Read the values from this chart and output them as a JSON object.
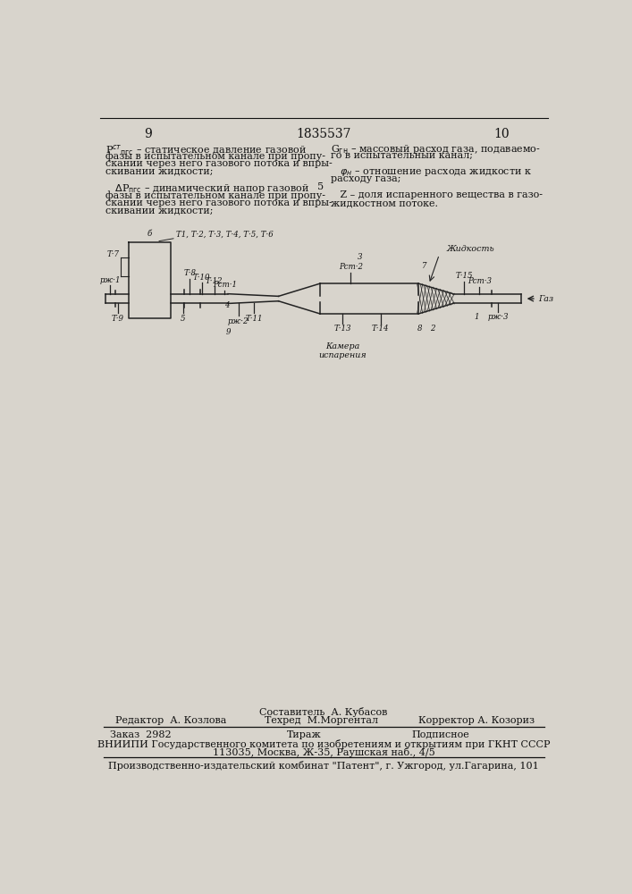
{
  "page_left": "9",
  "page_center": "1835537",
  "page_right": "10",
  "bg_color": "#d8d4cc",
  "text_color": "#111111",
  "line_color": "#222222"
}
